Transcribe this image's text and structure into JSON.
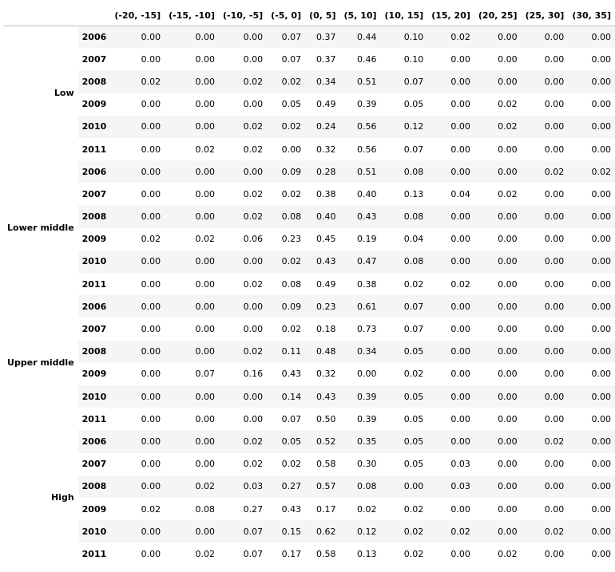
{
  "table": {
    "columns": [
      "(-20, -15]",
      "(-15, -10]",
      "(-10, -5]",
      "(-5, 0]",
      "(0, 5]",
      "(5, 10]",
      "(10, 15]",
      "(15, 20]",
      "(20, 25]",
      "(25, 30]",
      "(30, 35]"
    ],
    "groups": [
      {
        "name": "Low",
        "rows": [
          {
            "year": "2006",
            "values": [
              "0.00",
              "0.00",
              "0.00",
              "0.07",
              "0.37",
              "0.44",
              "0.10",
              "0.02",
              "0.00",
              "0.00",
              "0.00"
            ]
          },
          {
            "year": "2007",
            "values": [
              "0.00",
              "0.00",
              "0.00",
              "0.07",
              "0.37",
              "0.46",
              "0.10",
              "0.00",
              "0.00",
              "0.00",
              "0.00"
            ]
          },
          {
            "year": "2008",
            "values": [
              "0.02",
              "0.00",
              "0.02",
              "0.02",
              "0.34",
              "0.51",
              "0.07",
              "0.00",
              "0.00",
              "0.00",
              "0.00"
            ]
          },
          {
            "year": "2009",
            "values": [
              "0.00",
              "0.00",
              "0.00",
              "0.05",
              "0.49",
              "0.39",
              "0.05",
              "0.00",
              "0.02",
              "0.00",
              "0.00"
            ]
          },
          {
            "year": "2010",
            "values": [
              "0.00",
              "0.00",
              "0.02",
              "0.02",
              "0.24",
              "0.56",
              "0.12",
              "0.00",
              "0.02",
              "0.00",
              "0.00"
            ]
          },
          {
            "year": "2011",
            "values": [
              "0.00",
              "0.02",
              "0.02",
              "0.00",
              "0.32",
              "0.56",
              "0.07",
              "0.00",
              "0.00",
              "0.00",
              "0.00"
            ]
          }
        ]
      },
      {
        "name": "Lower middle",
        "rows": [
          {
            "year": "2006",
            "values": [
              "0.00",
              "0.00",
              "0.00",
              "0.09",
              "0.28",
              "0.51",
              "0.08",
              "0.00",
              "0.00",
              "0.02",
              "0.02"
            ]
          },
          {
            "year": "2007",
            "values": [
              "0.00",
              "0.00",
              "0.02",
              "0.02",
              "0.38",
              "0.40",
              "0.13",
              "0.04",
              "0.02",
              "0.00",
              "0.00"
            ]
          },
          {
            "year": "2008",
            "values": [
              "0.00",
              "0.00",
              "0.02",
              "0.08",
              "0.40",
              "0.43",
              "0.08",
              "0.00",
              "0.00",
              "0.00",
              "0.00"
            ]
          },
          {
            "year": "2009",
            "values": [
              "0.02",
              "0.02",
              "0.06",
              "0.23",
              "0.45",
              "0.19",
              "0.04",
              "0.00",
              "0.00",
              "0.00",
              "0.00"
            ]
          },
          {
            "year": "2010",
            "values": [
              "0.00",
              "0.00",
              "0.00",
              "0.02",
              "0.43",
              "0.47",
              "0.08",
              "0.00",
              "0.00",
              "0.00",
              "0.00"
            ]
          },
          {
            "year": "2011",
            "values": [
              "0.00",
              "0.00",
              "0.02",
              "0.08",
              "0.49",
              "0.38",
              "0.02",
              "0.02",
              "0.00",
              "0.00",
              "0.00"
            ]
          }
        ]
      },
      {
        "name": "Upper middle",
        "rows": [
          {
            "year": "2006",
            "values": [
              "0.00",
              "0.00",
              "0.00",
              "0.09",
              "0.23",
              "0.61",
              "0.07",
              "0.00",
              "0.00",
              "0.00",
              "0.00"
            ]
          },
          {
            "year": "2007",
            "values": [
              "0.00",
              "0.00",
              "0.00",
              "0.02",
              "0.18",
              "0.73",
              "0.07",
              "0.00",
              "0.00",
              "0.00",
              "0.00"
            ]
          },
          {
            "year": "2008",
            "values": [
              "0.00",
              "0.00",
              "0.02",
              "0.11",
              "0.48",
              "0.34",
              "0.05",
              "0.00",
              "0.00",
              "0.00",
              "0.00"
            ]
          },
          {
            "year": "2009",
            "values": [
              "0.00",
              "0.07",
              "0.16",
              "0.43",
              "0.32",
              "0.00",
              "0.02",
              "0.00",
              "0.00",
              "0.00",
              "0.00"
            ]
          },
          {
            "year": "2010",
            "values": [
              "0.00",
              "0.00",
              "0.00",
              "0.14",
              "0.43",
              "0.39",
              "0.05",
              "0.00",
              "0.00",
              "0.00",
              "0.00"
            ]
          },
          {
            "year": "2011",
            "values": [
              "0.00",
              "0.00",
              "0.00",
              "0.07",
              "0.50",
              "0.39",
              "0.05",
              "0.00",
              "0.00",
              "0.00",
              "0.00"
            ]
          }
        ]
      },
      {
        "name": "High",
        "rows": [
          {
            "year": "2006",
            "values": [
              "0.00",
              "0.00",
              "0.02",
              "0.05",
              "0.52",
              "0.35",
              "0.05",
              "0.00",
              "0.00",
              "0.02",
              "0.00"
            ]
          },
          {
            "year": "2007",
            "values": [
              "0.00",
              "0.00",
              "0.02",
              "0.02",
              "0.58",
              "0.30",
              "0.05",
              "0.03",
              "0.00",
              "0.00",
              "0.00"
            ]
          },
          {
            "year": "2008",
            "values": [
              "0.00",
              "0.02",
              "0.03",
              "0.27",
              "0.57",
              "0.08",
              "0.00",
              "0.03",
              "0.00",
              "0.00",
              "0.00"
            ]
          },
          {
            "year": "2009",
            "values": [
              "0.02",
              "0.08",
              "0.27",
              "0.43",
              "0.17",
              "0.02",
              "0.02",
              "0.00",
              "0.00",
              "0.00",
              "0.00"
            ]
          },
          {
            "year": "2010",
            "values": [
              "0.00",
              "0.00",
              "0.07",
              "0.15",
              "0.62",
              "0.12",
              "0.02",
              "0.02",
              "0.00",
              "0.02",
              "0.00"
            ]
          },
          {
            "year": "2011",
            "values": [
              "0.00",
              "0.02",
              "0.07",
              "0.17",
              "0.58",
              "0.13",
              "0.02",
              "0.00",
              "0.02",
              "0.00",
              "0.00"
            ]
          }
        ]
      }
    ]
  },
  "colors": {
    "stripe": "#f5f5f5",
    "header_rule": "#bdbdbd",
    "text": "#000000"
  }
}
